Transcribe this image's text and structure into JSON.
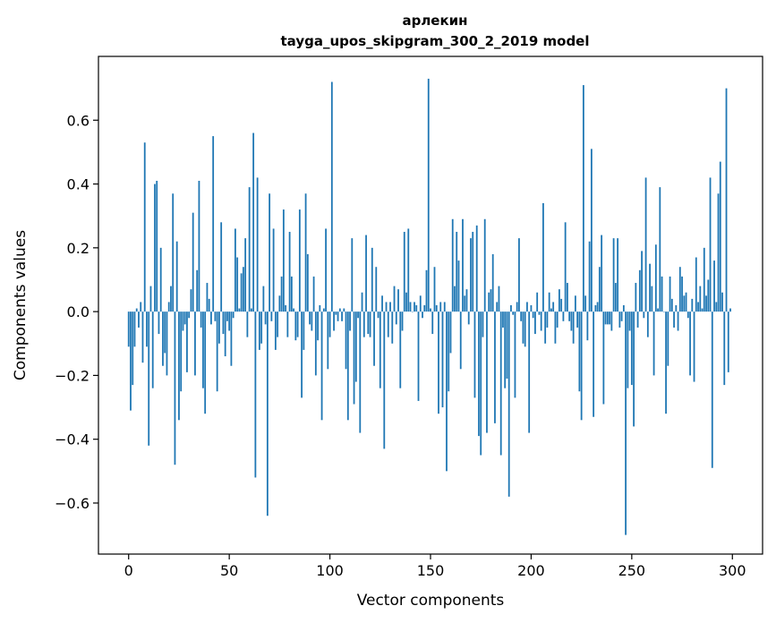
{
  "chart_data": {
    "type": "bar",
    "title": "арлекин",
    "subtitle": "tayga_upos_skipgram_300_2_2019 model",
    "xlabel": "Vector components",
    "ylabel": "Components values",
    "xlim": [
      -15,
      315
    ],
    "ylim": [
      -0.76,
      0.8
    ],
    "xticks": [
      0,
      50,
      100,
      150,
      200,
      250,
      300
    ],
    "xtick_labels": [
      "0",
      "50",
      "100",
      "150",
      "200",
      "250",
      "300"
    ],
    "yticks": [
      -0.6,
      -0.4,
      -0.2,
      0.0,
      0.2,
      0.4,
      0.6
    ],
    "ytick_labels": [
      "−0.6",
      "−0.4",
      "−0.2",
      "0.0",
      "0.2",
      "0.4",
      "0.6"
    ],
    "bar_color": "#1f77b4",
    "grid": false,
    "x": "0..299",
    "values": [
      -0.11,
      -0.31,
      -0.23,
      -0.11,
      0.01,
      -0.05,
      0.03,
      -0.16,
      0.53,
      -0.11,
      -0.42,
      0.08,
      -0.24,
      0.4,
      0.41,
      -0.07,
      0.2,
      -0.17,
      -0.13,
      -0.2,
      0.03,
      0.08,
      0.37,
      -0.48,
      0.22,
      -0.34,
      -0.25,
      -0.06,
      -0.04,
      -0.19,
      -0.02,
      0.07,
      0.31,
      -0.2,
      0.13,
      0.41,
      -0.05,
      -0.24,
      -0.32,
      0.09,
      0.04,
      -0.04,
      0.55,
      -0.03,
      -0.25,
      -0.1,
      0.28,
      -0.07,
      -0.14,
      -0.03,
      -0.06,
      -0.17,
      -0.02,
      0.26,
      0.17,
      0.01,
      0.12,
      0.14,
      0.23,
      -0.08,
      0.39,
      0.01,
      0.56,
      -0.52,
      0.42,
      -0.12,
      -0.1,
      0.08,
      -0.04,
      -0.64,
      0.37,
      -0.03,
      0.26,
      -0.12,
      -0.08,
      0.05,
      0.11,
      0.32,
      0.02,
      -0.08,
      0.25,
      0.11,
      0.01,
      -0.09,
      -0.08,
      0.32,
      -0.27,
      -0.12,
      0.37,
      0.18,
      -0.04,
      -0.06,
      0.11,
      -0.2,
      -0.09,
      0.02,
      -0.34,
      0.01,
      0.26,
      -0.18,
      -0.08,
      0.72,
      -0.06,
      -0.01,
      -0.03,
      0.01,
      -0.03,
      0.01,
      -0.18,
      -0.34,
      -0.06,
      0.23,
      -0.29,
      -0.22,
      -0.02,
      -0.38,
      0.06,
      -0.08,
      0.24,
      -0.07,
      -0.08,
      0.2,
      -0.17,
      0.14,
      -0.02,
      -0.24,
      0.05,
      -0.43,
      0.03,
      -0.08,
      0.03,
      -0.1,
      0.08,
      -0.04,
      0.07,
      -0.24,
      -0.06,
      0.25,
      0.06,
      0.26,
      0.03,
      0.0,
      0.03,
      0.02,
      -0.28,
      0.05,
      -0.02,
      0.02,
      0.13,
      0.73,
      0.01,
      -0.07,
      0.14,
      0.02,
      -0.32,
      0.03,
      -0.3,
      0.03,
      -0.5,
      -0.25,
      -0.13,
      0.29,
      0.08,
      0.25,
      0.16,
      -0.18,
      0.29,
      0.05,
      0.07,
      -0.04,
      0.23,
      0.25,
      -0.27,
      0.27,
      -0.39,
      -0.45,
      -0.08,
      0.29,
      -0.38,
      0.06,
      0.07,
      0.18,
      -0.35,
      0.03,
      0.08,
      -0.45,
      -0.05,
      -0.24,
      -0.21,
      -0.58,
      0.02,
      -0.01,
      -0.27,
      0.03,
      0.23,
      -0.03,
      -0.1,
      -0.11,
      0.03,
      -0.38,
      0.02,
      -0.02,
      -0.07,
      0.06,
      -0.01,
      -0.06,
      0.34,
      -0.1,
      -0.05,
      0.06,
      0.01,
      0.03,
      -0.1,
      -0.05,
      0.07,
      0.04,
      -0.03,
      0.28,
      0.09,
      -0.03,
      -0.06,
      -0.1,
      0.05,
      -0.05,
      -0.25,
      -0.34,
      0.71,
      0.05,
      -0.09,
      0.22,
      0.51,
      -0.33,
      0.02,
      0.03,
      0.14,
      0.24,
      -0.29,
      -0.04,
      -0.04,
      -0.04,
      -0.06,
      0.23,
      0.09,
      0.23,
      -0.05,
      -0.03,
      0.02,
      -0.7,
      -0.24,
      -0.06,
      -0.23,
      -0.36,
      0.09,
      -0.05,
      0.13,
      0.19,
      -0.02,
      0.42,
      -0.08,
      0.15,
      0.08,
      -0.2,
      0.21,
      0.01,
      0.39,
      0.11,
      0.0,
      -0.32,
      -0.17,
      0.11,
      0.04,
      -0.05,
      0.02,
      -0.06,
      0.14,
      0.11,
      0.05,
      0.06,
      -0.02,
      -0.2,
      0.04,
      -0.22,
      0.17,
      0.03,
      0.08,
      0.01,
      0.2,
      0.05,
      0.1,
      0.42,
      -0.49,
      0.16,
      0.03,
      0.37,
      0.47,
      0.06,
      -0.23,
      0.7,
      -0.19,
      0.01
    ]
  }
}
